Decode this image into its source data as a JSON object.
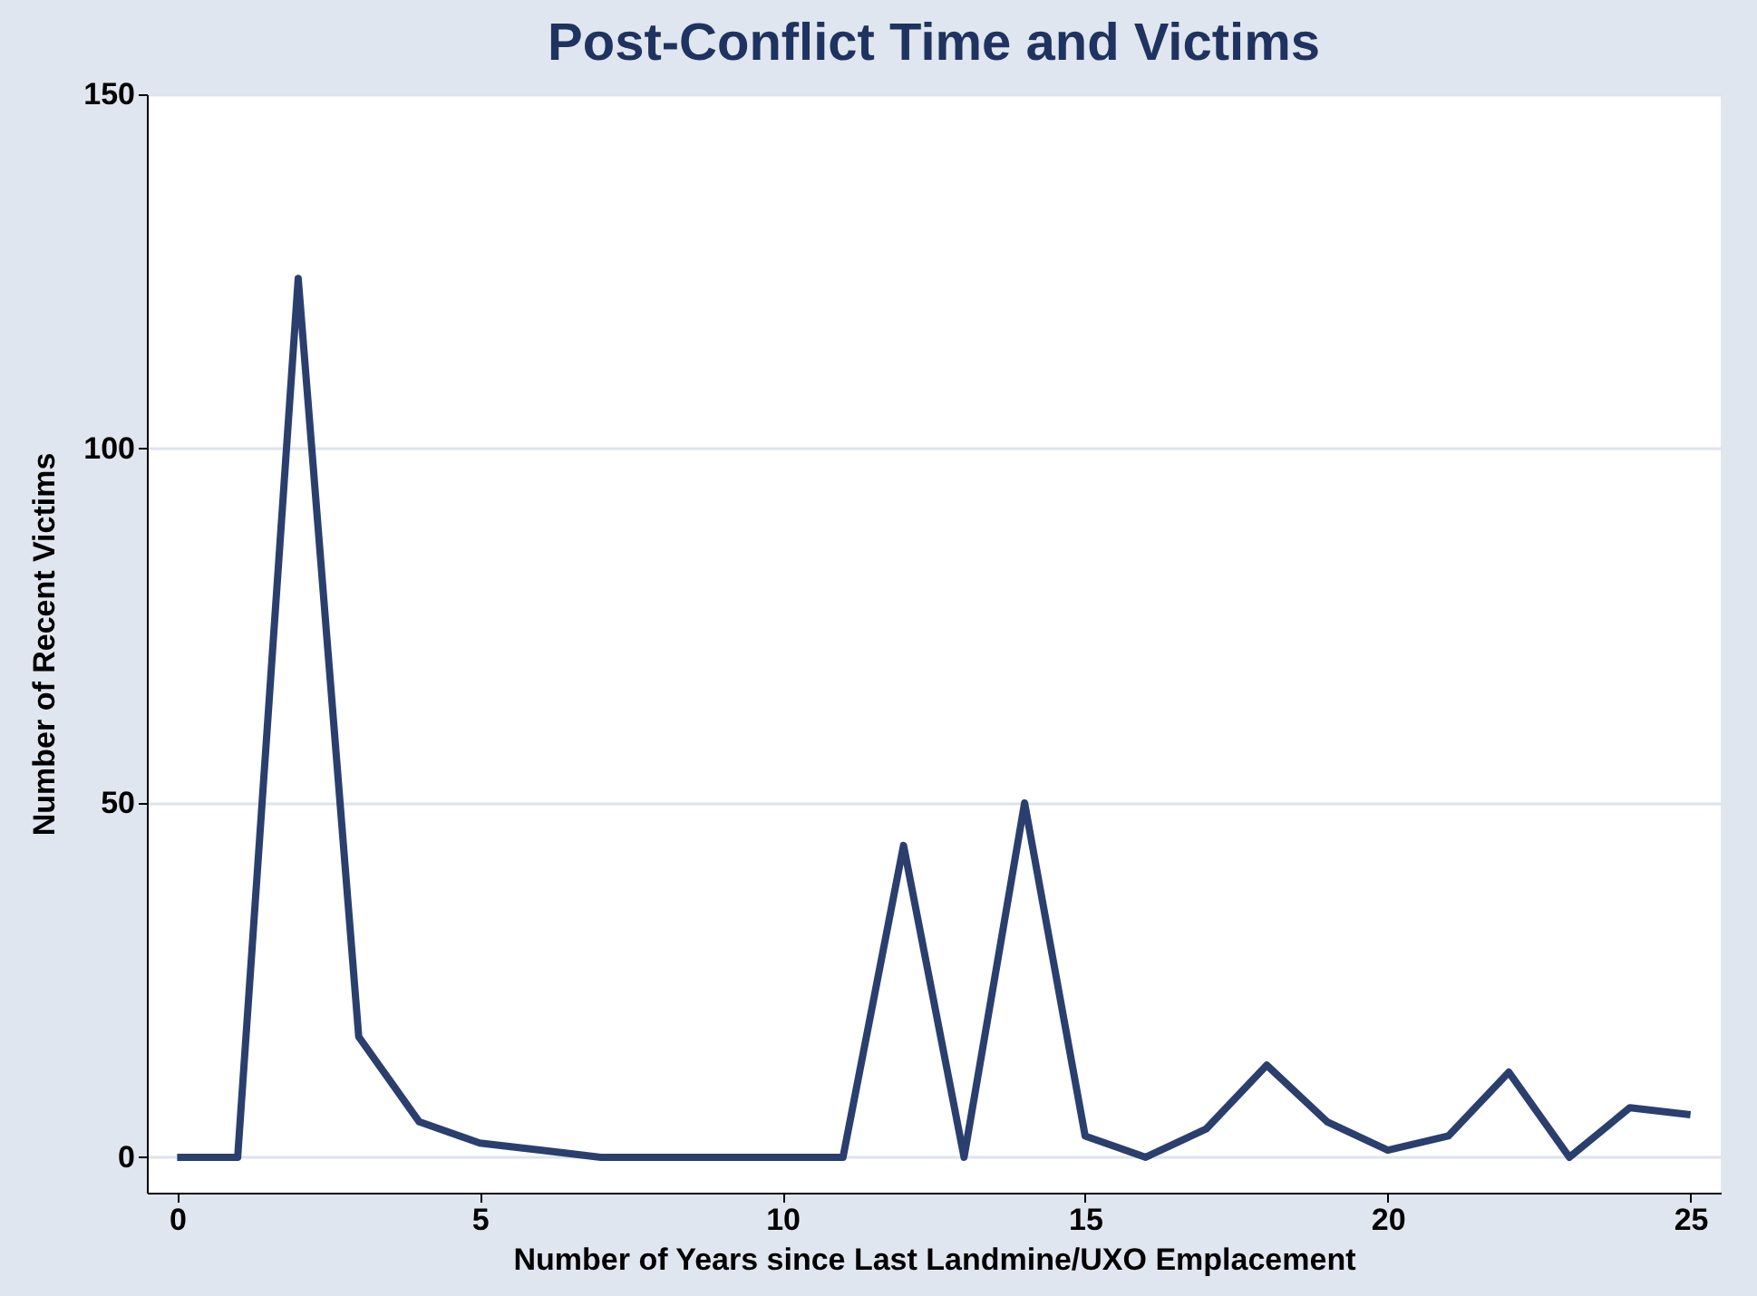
{
  "chart_data": {
    "type": "line",
    "title": "Post-Conflict Time and Victims",
    "xlabel": "Number of Years since Last Landmine/UXO Emplacement",
    "ylabel": "Number of Recent Victims",
    "x": [
      0,
      1,
      2,
      3,
      4,
      5,
      6,
      7,
      8,
      9,
      10,
      11,
      12,
      13,
      14,
      15,
      16,
      17,
      18,
      19,
      20,
      21,
      22,
      23,
      24,
      25
    ],
    "series": [
      {
        "color": "#2b3f6e",
        "values": [
          0,
          0,
          124,
          17,
          5,
          2,
          1,
          0,
          0,
          0,
          0,
          0,
          44,
          0,
          50,
          3,
          0,
          4,
          13,
          5,
          1,
          3,
          12,
          0,
          7,
          6
        ]
      }
    ],
    "xlim": [
      -0.5,
      25.5
    ],
    "xticks": [
      0,
      5,
      10,
      15,
      20,
      25
    ],
    "ylim": [
      -5,
      150
    ],
    "yticks": [
      0,
      50,
      100,
      150
    ],
    "grid": "y",
    "marker": "none",
    "line_style": "solid"
  }
}
